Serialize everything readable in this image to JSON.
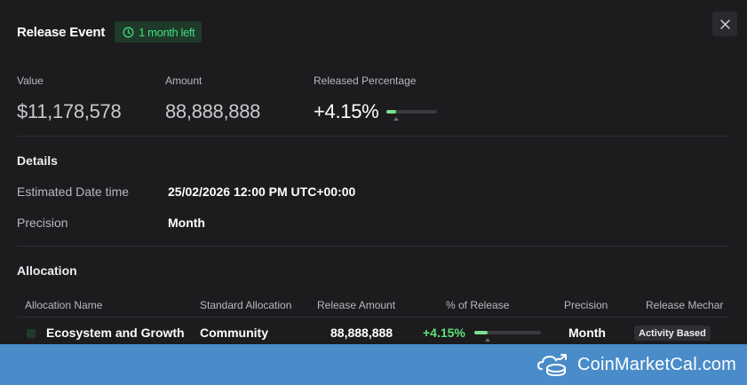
{
  "modal": {
    "title": "Release Event",
    "badge_label": "1 month left",
    "badge_icon": "clock-icon",
    "close_icon": "close-icon"
  },
  "stats": {
    "value_label": "Value",
    "value": "$11,178,578",
    "amount_label": "Amount",
    "amount": "88,888,888",
    "released_label": "Released Percentage",
    "released": "+4.15%",
    "released_fraction": 0.0415
  },
  "details": {
    "title": "Details",
    "date_label": "Estimated Date time",
    "date_value": "25/02/2026 12:00 PM UTC+00:00",
    "precision_label": "Precision",
    "precision_value": "Month"
  },
  "allocation": {
    "title": "Allocation",
    "columns": [
      "Allocation Name",
      "Standard Allocation",
      "Release Amount",
      "% of Release",
      "Precision",
      "Release Mechar"
    ],
    "rows": [
      {
        "name": "Ecosystem and Growth",
        "standard": "Community",
        "amount": "88,888,888",
        "percent": "+4.15%",
        "percent_fraction": 0.0415,
        "precision": "Month",
        "mechanism": "Activity Based"
      }
    ]
  },
  "watermark": {
    "text": "CoinMarketCal.com",
    "icon": "coinmarketcal-logo-icon",
    "color": "#4a8cc9"
  },
  "colors": {
    "background": "#1c1b1e",
    "accent_green": "#5fe07a",
    "badge_bg": "#1f3a2a"
  }
}
